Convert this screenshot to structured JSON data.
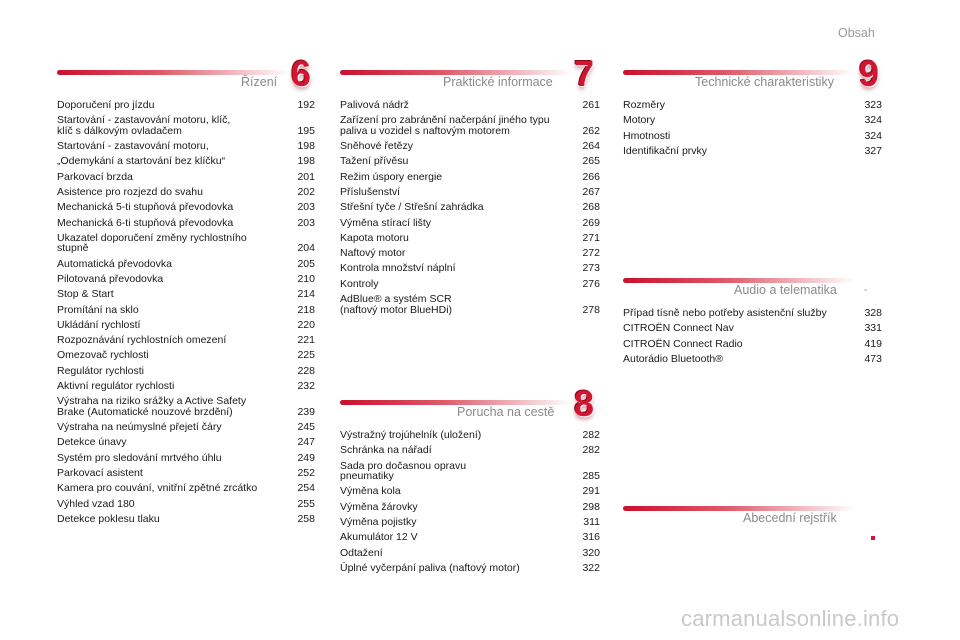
{
  "header": {
    "title": "Obsah"
  },
  "sections": [
    {
      "id": "rizeni",
      "title": "Řízení",
      "number": "6",
      "items": [
        {
          "title": "Doporučení pro jízdu",
          "page": "192"
        },
        {
          "title": "Startování - zastavování motoru, klíč,\n    klíč s dálkovým ovladačem",
          "page": "195"
        },
        {
          "title": "Startování - zastavování motoru,",
          "page": "198"
        },
        {
          "title": "„Odemykání a startování bez klíčku“",
          "page": "198"
        },
        {
          "title": "Parkovací brzda",
          "page": "201"
        },
        {
          "title": "Asistence pro rozjezd do svahu",
          "page": "202"
        },
        {
          "title": "Mechanická 5-ti stupňová převodovka",
          "page": "203"
        },
        {
          "title": "Mechanická 6-ti stupňová převodovka",
          "page": "203"
        },
        {
          "title": "Ukazatel doporučení změny rychlostního\n    stupně",
          "page": "204"
        },
        {
          "title": "Automatická převodovka",
          "page": "205"
        },
        {
          "title": "Pilotovaná převodovka",
          "page": "210"
        },
        {
          "title": "Stop & Start",
          "page": "214"
        },
        {
          "title": "Promítání na sklo",
          "page": "218"
        },
        {
          "title": "Ukládání rychlostí",
          "page": "220"
        },
        {
          "title": "Rozpoznávání rychlostních omezení",
          "page": "221"
        },
        {
          "title": "Omezovač rychlosti",
          "page": "225"
        },
        {
          "title": "Regulátor rychlosti",
          "page": "228"
        },
        {
          "title": "Aktivní regulátor rychlosti",
          "page": "232"
        },
        {
          "title": "Výstraha na riziko srážky a Active Safety\n    Brake (Automatické nouzové brzdění)",
          "page": "239"
        },
        {
          "title": "Výstraha na neúmyslné přejetí čáry",
          "page": "245"
        },
        {
          "title": "Detekce únavy",
          "page": "247"
        },
        {
          "title": "Systém pro sledování mrtvého úhlu",
          "page": "249"
        },
        {
          "title": "Parkovací asistent",
          "page": "252"
        },
        {
          "title": "Kamera pro couvání, vnitřní zpětné zrcátko",
          "page": "254"
        },
        {
          "title": "Výhled vzad 180",
          "page": "255"
        },
        {
          "title": "Detekce poklesu tlaku",
          "page": "258"
        }
      ]
    },
    {
      "id": "prakticke",
      "title": "Praktické informace",
      "number": "7",
      "items": [
        {
          "title": "Palivová nádrž",
          "page": "261"
        },
        {
          "title": "Zařízení pro zabránění načerpání jiného typu\n    paliva u vozidel s naftovým motorem",
          "page": "262"
        },
        {
          "title": "Sněhové řetězy",
          "page": "264"
        },
        {
          "title": "Tažení přívěsu",
          "page": "265"
        },
        {
          "title": "Režim úspory energie",
          "page": "266"
        },
        {
          "title": "Příslušenství",
          "page": "267"
        },
        {
          "title": "Střešní tyče / Střešní zahrádka",
          "page": "268"
        },
        {
          "title": "Výměna stírací lišty",
          "page": "269"
        },
        {
          "title": "Kapota motoru",
          "page": "271"
        },
        {
          "title": "Naftový motor",
          "page": "272"
        },
        {
          "title": "Kontrola množství náplní",
          "page": "273"
        },
        {
          "title": "Kontroly",
          "page": "276"
        },
        {
          "title": "AdBlue® a systém SCR\n    (naftový motor BlueHDi)",
          "page": "278"
        }
      ]
    },
    {
      "id": "porucha",
      "title": "Porucha na cestě",
      "number": "8",
      "items": [
        {
          "title": "Výstražný trojúhelník (uložení)",
          "page": "282"
        },
        {
          "title": "Schránka na nářadí",
          "page": "282"
        },
        {
          "title": "Sada pro dočasnou opravu\n    pneumatiky",
          "page": "285"
        },
        {
          "title": "Výměna kola",
          "page": "291"
        },
        {
          "title": "Výměna žárovky",
          "page": "298"
        },
        {
          "title": "Výměna pojistky",
          "page": "311"
        },
        {
          "title": "Akumulátor 12 V",
          "page": "316"
        },
        {
          "title": "Odtažení",
          "page": "320"
        },
        {
          "title": "Úplné vyčerpání paliva (naftový motor)",
          "page": "322"
        }
      ]
    },
    {
      "id": "technicke",
      "title": "Technické charakteristiky",
      "number": "9",
      "items": [
        {
          "title": "Rozměry",
          "page": "323"
        },
        {
          "title": "Motory",
          "page": "324"
        },
        {
          "title": "Hmotnosti",
          "page": "324"
        },
        {
          "title": "Identifikační prvky",
          "page": "327"
        }
      ]
    },
    {
      "id": "audio",
      "title": "Audio a telematika",
      "number": "",
      "items": [
        {
          "title": "Případ tísně nebo potřeby asistenční služby",
          "page": "328"
        },
        {
          "title": "CITROËN Connect Nav",
          "page": "331"
        },
        {
          "title": "CITROËN Connect Radio",
          "page": "419"
        },
        {
          "title": "Autorádio Bluetooth®",
          "page": "473"
        }
      ]
    },
    {
      "id": "abecedni",
      "title": "Abecední rejstřík",
      "number": "",
      "items": []
    }
  ],
  "watermark": "carmanualsonline.info",
  "colors": {
    "accent": "#d3152f",
    "muted_text": "#8a8a8a"
  }
}
